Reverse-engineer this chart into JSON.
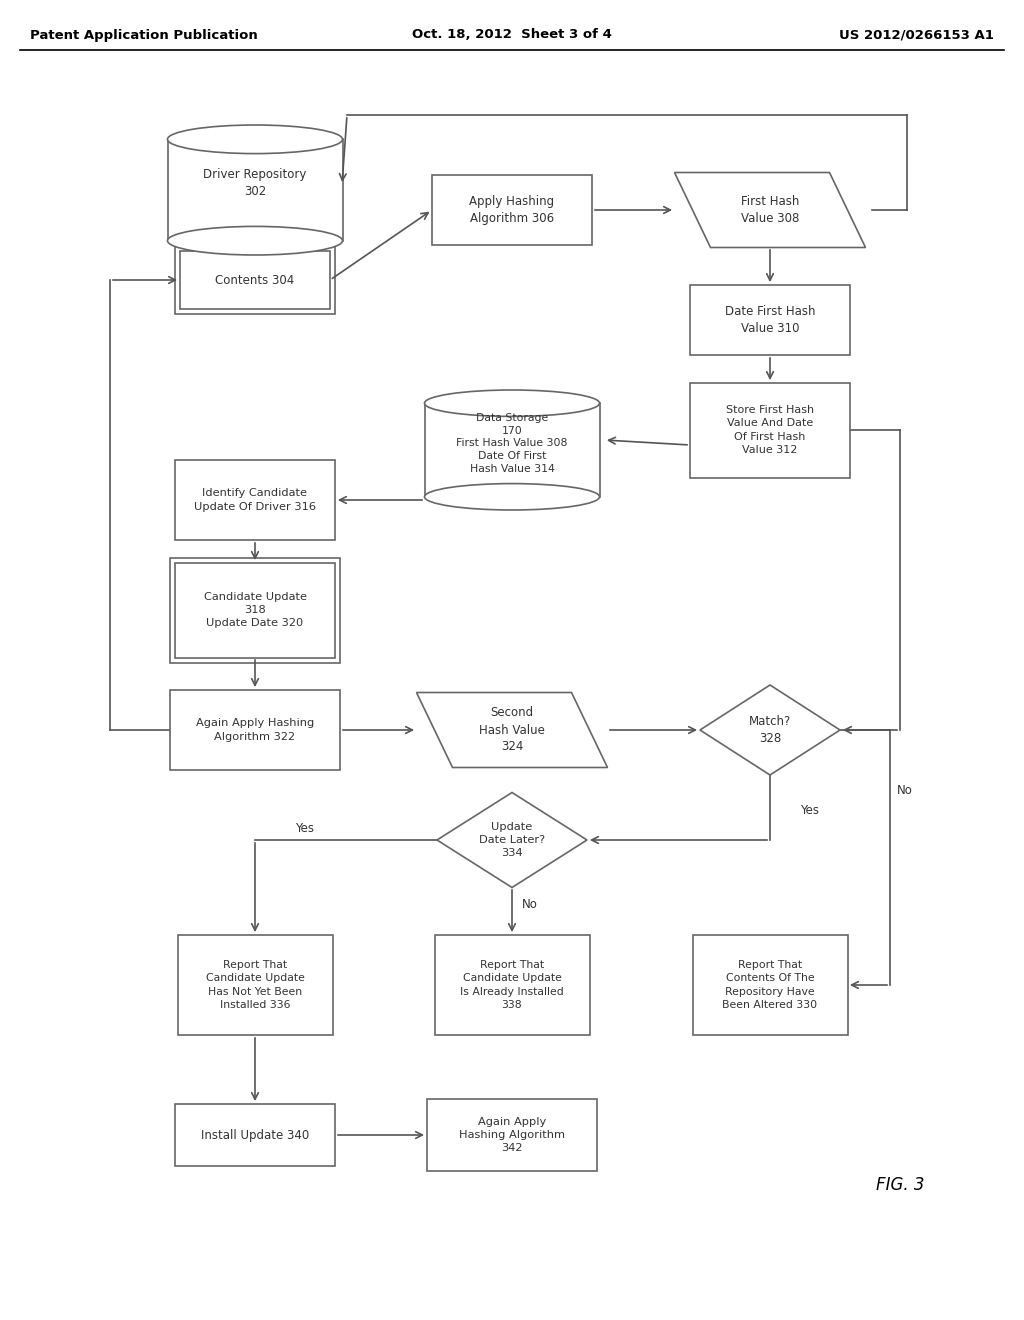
{
  "title_left": "Patent Application Publication",
  "title_center": "Oct. 18, 2012  Sheet 3 of 4",
  "title_right": "US 2012/0266153 A1",
  "fig_label": "FIG. 3",
  "bg_color": "#ffffff",
  "border_color": "#666666",
  "text_color": "#333333",
  "arrow_color": "#555555",
  "lw": 1.2
}
